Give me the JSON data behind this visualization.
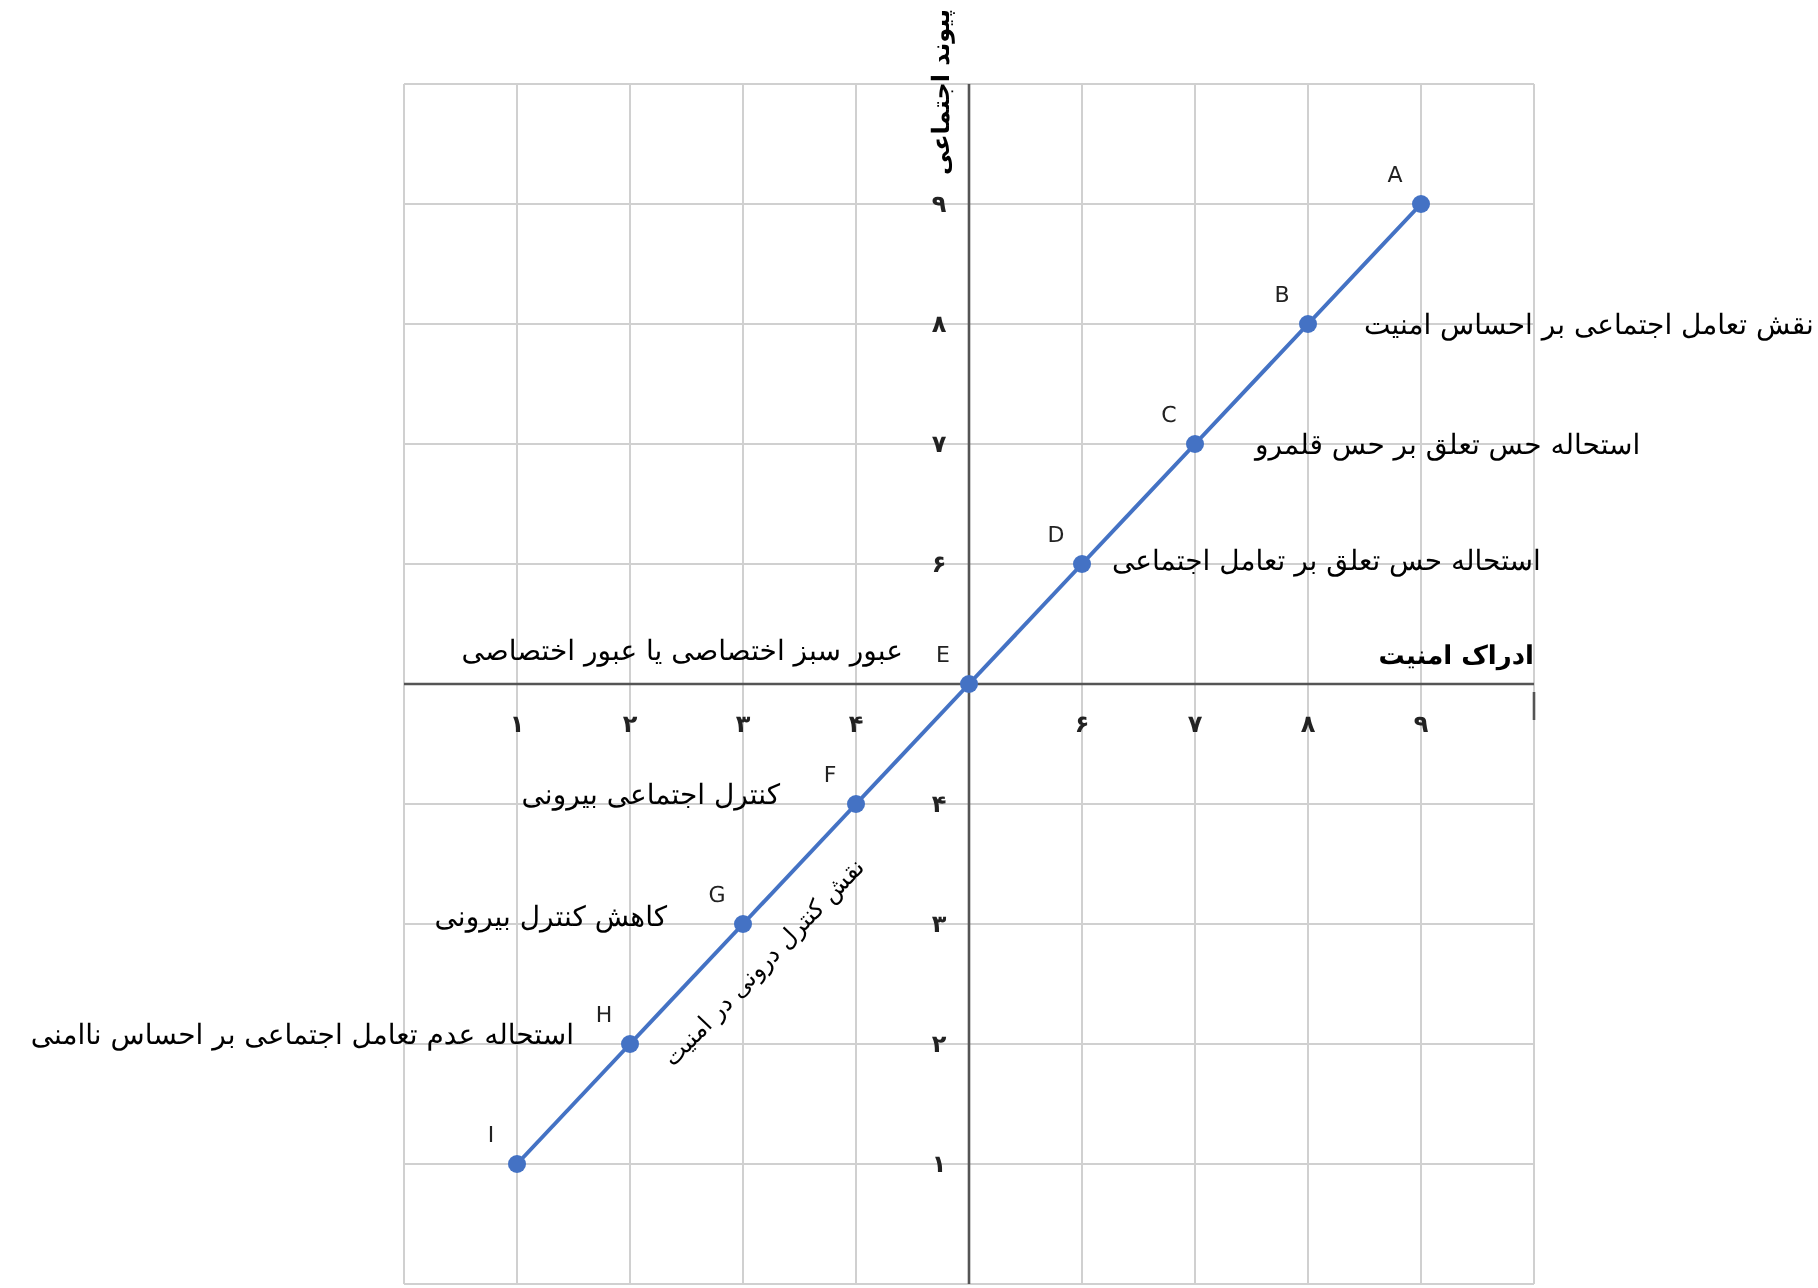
{
  "chart_data": {
    "type": "line",
    "xlabel": "ادراک امنیت",
    "ylabel": "پیوند اجتماعی",
    "x": [
      1,
      2,
      3,
      4,
      5,
      6,
      7,
      8,
      9
    ],
    "series": [
      {
        "color": "#4472c4",
        "values": [
          1,
          2,
          3,
          4,
          5,
          6,
          7,
          8,
          9
        ],
        "value_labels": [
          "I",
          "H",
          "G",
          "F",
          "E",
          "D",
          "C",
          "B",
          "A"
        ]
      }
    ],
    "xlim": [
      0,
      10
    ],
    "ylim": [
      0,
      10
    ],
    "xticks": [
      {
        "value": 1,
        "label": "۱"
      },
      {
        "value": 2,
        "label": "۲"
      },
      {
        "value": 3,
        "label": "۳"
      },
      {
        "value": 4,
        "label": "۴"
      },
      {
        "value": 5,
        "label": null
      },
      {
        "value": 6,
        "label": "۶"
      },
      {
        "value": 7,
        "label": "۷"
      },
      {
        "value": 8,
        "label": "۸"
      },
      {
        "value": 9,
        "label": "۹"
      }
    ],
    "yticks": [
      {
        "value": 1,
        "label": "۱"
      },
      {
        "value": 2,
        "label": "۲"
      },
      {
        "value": 3,
        "label": "۳"
      },
      {
        "value": 4,
        "label": "۴"
      },
      {
        "value": 5,
        "label": null
      },
      {
        "value": 6,
        "label": "۶"
      },
      {
        "value": 7,
        "label": "۷"
      },
      {
        "value": 8,
        "label": "۸"
      },
      {
        "value": 9,
        "label": "۹"
      }
    ],
    "grid": true,
    "marker": "circle",
    "line_style": "solid",
    "annotations": [
      {
        "text": "نقش تعامل اجتماعی بر احساس امنیت",
        "x": 8,
        "y": 8
      },
      {
        "text": "استحاله حس تعلق بر حس قلمرو",
        "x": 7,
        "y": 7
      },
      {
        "text": "استحاله حس تعلق بر تعامل اجتماعی",
        "x": 6,
        "y": 6
      },
      {
        "text": "عبور سبز اختصاصی یا عبور اختصاصی",
        "x": 5,
        "y": 5
      },
      {
        "text": "کنترل اجتماعی بیرونی",
        "x": 4,
        "y": 4
      },
      {
        "text": "کاهش کنترل بیرونی",
        "x": 3,
        "y": 3
      },
      {
        "text": "استحاله عدم تعامل اجتماعی بر احساس ناامنی",
        "x": 2,
        "y": 2
      },
      {
        "text": "نقش کنترل درونی در امنیت",
        "x": 3.5,
        "y": 3.5
      }
    ]
  }
}
